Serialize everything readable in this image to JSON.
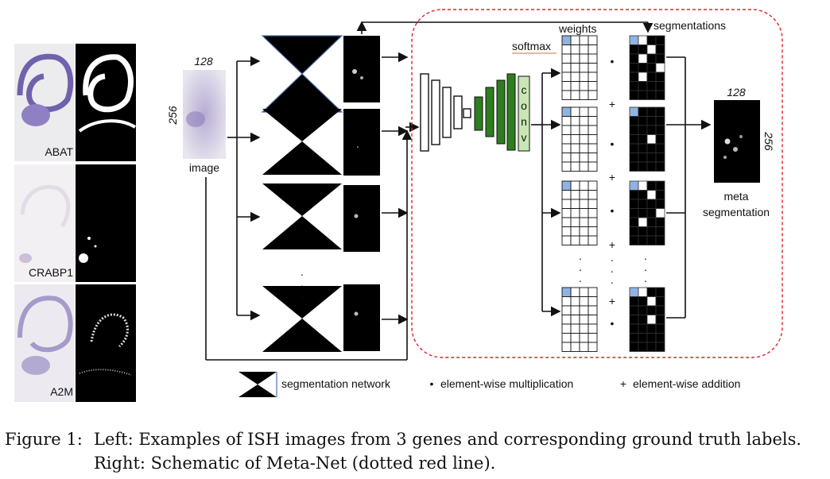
{
  "genes": [
    {
      "name": "ABAT"
    },
    {
      "name": "CRABP1"
    },
    {
      "name": "A2M"
    }
  ],
  "input": {
    "label": "image",
    "width_label": "128",
    "height_label": "256"
  },
  "meta_net": {
    "softmax_label": "softmax",
    "weights_label": "weights",
    "segmentations_label": "segmentations",
    "conv_letters": [
      "c",
      "o",
      "n",
      "v"
    ],
    "ops": {
      "plus": "+",
      "dot": "•",
      "vdots": "·"
    }
  },
  "output": {
    "width_label": "128",
    "height_label": "256",
    "label_line1": "meta",
    "label_line2": "segmentation"
  },
  "legend": {
    "segnet": "segmentation network",
    "multiply_symbol": "•",
    "multiply": "element-wise multiplication",
    "add_symbol": "+",
    "add": "element-wise addition"
  },
  "caption": {
    "label": "Figure 1:",
    "text": "Left: Examples of ISH images from 3 genes and corresponding ground truth labels. Right: Schematic of Meta-Net (dotted red line)."
  },
  "colors": {
    "meta_border": "#e0242a",
    "conv_green": "#2e7d1e",
    "conv_light": "#c9e7b4",
    "weight_highlight": "#8fb4e3"
  }
}
